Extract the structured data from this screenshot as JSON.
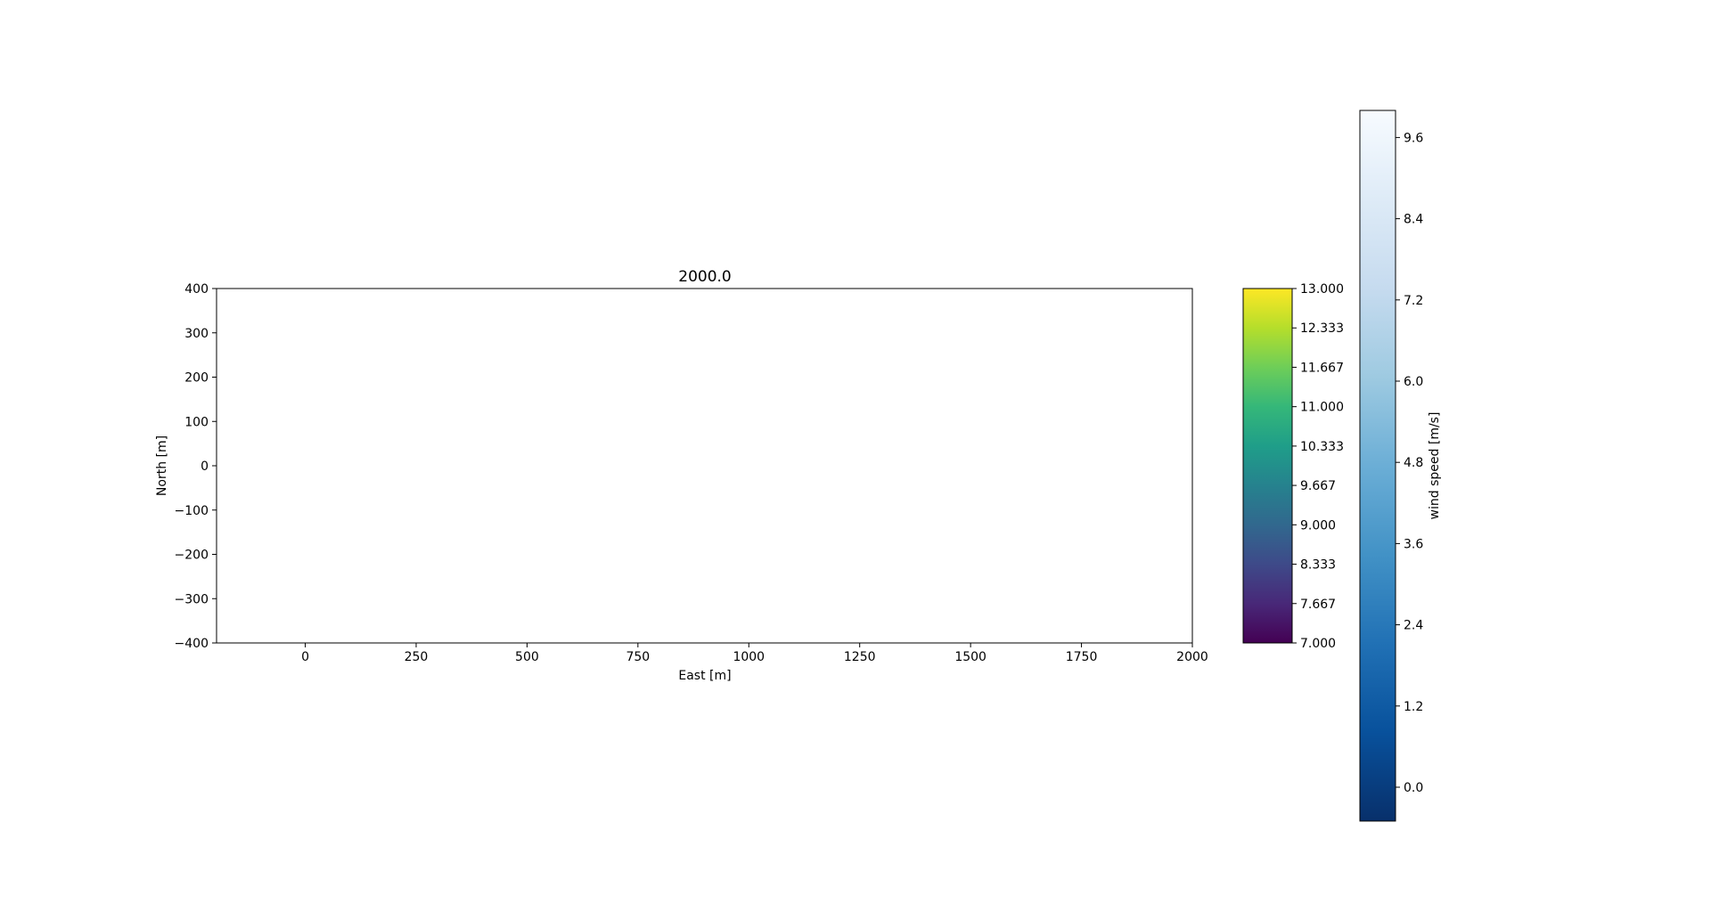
{
  "chart_data": [
    {
      "type": "scatter",
      "title": "2000.0",
      "xlabel": "East [m]",
      "ylabel": "North [m]",
      "xlim": [
        -200,
        2000
      ],
      "ylim": [
        -400,
        400
      ],
      "xticks": [
        0,
        250,
        500,
        750,
        1000,
        1250,
        1500,
        1750,
        2000
      ],
      "yticks": [
        -400,
        -300,
        -200,
        -100,
        0,
        100,
        200,
        300,
        400
      ],
      "xtick_labels": [
        "0",
        "250",
        "500",
        "750",
        "1000",
        "1250",
        "1500",
        "1750",
        "2000"
      ],
      "ytick_labels": [
        "−400",
        "−300",
        "−200",
        "−100",
        "0",
        "100",
        "200",
        "300",
        "400"
      ],
      "series": [],
      "grid": false
    },
    {
      "type": "colorbar",
      "colormap": "viridis",
      "range": [
        7.0,
        13.0
      ],
      "ticks": [
        7.0,
        7.667,
        8.333,
        9.0,
        9.667,
        10.333,
        11.0,
        11.667,
        12.333,
        13.0
      ],
      "tick_labels": [
        "7.000",
        "7.667",
        "8.333",
        "9.000",
        "9.667",
        "10.333",
        "11.000",
        "11.667",
        "12.333",
        "13.000"
      ],
      "colors": [
        "#440154",
        "#482878",
        "#3e4a89",
        "#31688e",
        "#26828e",
        "#1f9e89",
        "#35b779",
        "#6ece58",
        "#b5de2b",
        "#fde725"
      ]
    },
    {
      "type": "colorbar",
      "colormap": "Blues_r",
      "label": "wind speed [m/s]",
      "range": [
        -0.5,
        10.0
      ],
      "ticks": [
        0.0,
        1.2,
        2.4,
        3.6,
        4.8,
        6.0,
        7.2,
        8.4,
        9.6
      ],
      "tick_labels": [
        "0.0",
        "1.2",
        "2.4",
        "3.6",
        "4.8",
        "6.0",
        "7.2",
        "8.4",
        "9.6"
      ],
      "colors": [
        "#08306b",
        "#08519c",
        "#2171b5",
        "#4292c6",
        "#6baed6",
        "#9ecae1",
        "#c6dbef",
        "#deebf7",
        "#f7fbff"
      ]
    }
  ]
}
